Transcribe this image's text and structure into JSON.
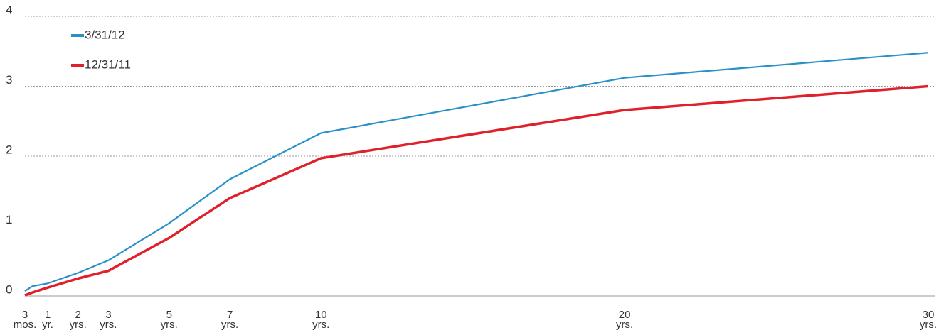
{
  "chart_data": {
    "type": "line",
    "x": [
      0.25,
      0.5,
      1,
      2,
      3,
      5,
      7,
      10,
      20,
      30
    ],
    "series": [
      {
        "name": "3/31/12",
        "color": "#2a91c8",
        "values": [
          0.07,
          0.14,
          0.18,
          0.33,
          0.51,
          1.04,
          1.67,
          2.33,
          3.12,
          3.48
        ]
      },
      {
        "name": "12/31/11",
        "color": "#e0202a",
        "values": [
          0.01,
          0.05,
          0.12,
          0.25,
          0.36,
          0.83,
          1.4,
          1.97,
          2.66,
          3.0
        ]
      }
    ],
    "xlim": [
      0.25,
      30
    ],
    "xticks": [
      {
        "value": 0.25,
        "label": "3\nmos."
      },
      {
        "value": 1,
        "label": "1\nyr."
      },
      {
        "value": 2,
        "label": "2\nyrs."
      },
      {
        "value": 3,
        "label": "3\nyrs."
      },
      {
        "value": 5,
        "label": "5\nyrs."
      },
      {
        "value": 7,
        "label": "7\nyrs."
      },
      {
        "value": 10,
        "label": "10\nyrs."
      },
      {
        "value": 20,
        "label": "20\nyrs."
      },
      {
        "value": 30,
        "label": "30\nyrs."
      }
    ],
    "ylim": [
      0,
      4
    ],
    "yticks": [
      0,
      1,
      2,
      3,
      4
    ],
    "grid": true,
    "legend": "top-left"
  }
}
